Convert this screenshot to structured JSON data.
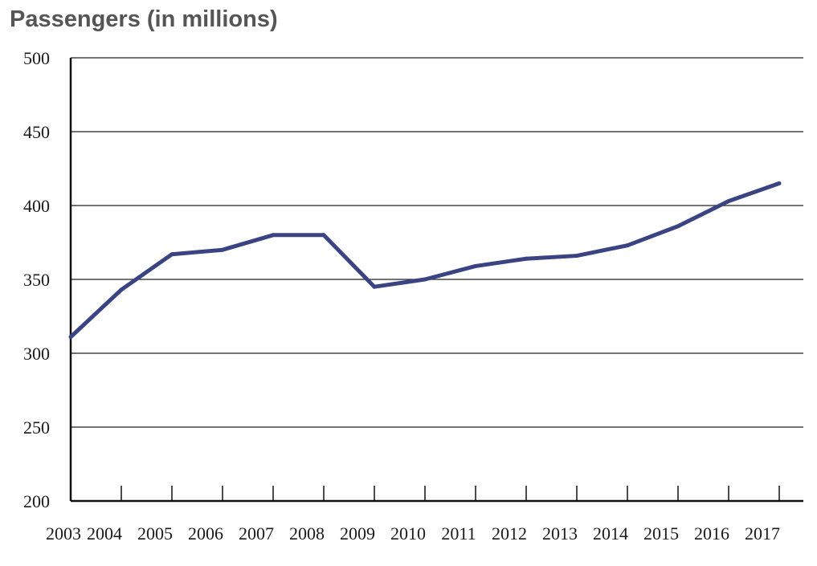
{
  "chart_data": {
    "type": "line",
    "title": "Passengers (in millions)",
    "xlabel": "",
    "ylabel": "",
    "categories": [
      "2003",
      "2004",
      "2005",
      "2006",
      "2007",
      "2008",
      "2009",
      "2010",
      "2011",
      "2012",
      "2013",
      "2014",
      "2015",
      "2016",
      "2017"
    ],
    "series": [
      {
        "values": [
          311,
          343,
          367,
          370,
          380,
          380,
          345,
          350,
          359,
          364,
          366,
          373,
          386,
          403,
          415
        ]
      }
    ],
    "ylim": [
      200,
      500
    ],
    "yticks": [
      200,
      250,
      300,
      350,
      400,
      450,
      500
    ],
    "grid": true,
    "legend": "none",
    "line_color": "#3b4483",
    "grid_color": "#222222"
  }
}
